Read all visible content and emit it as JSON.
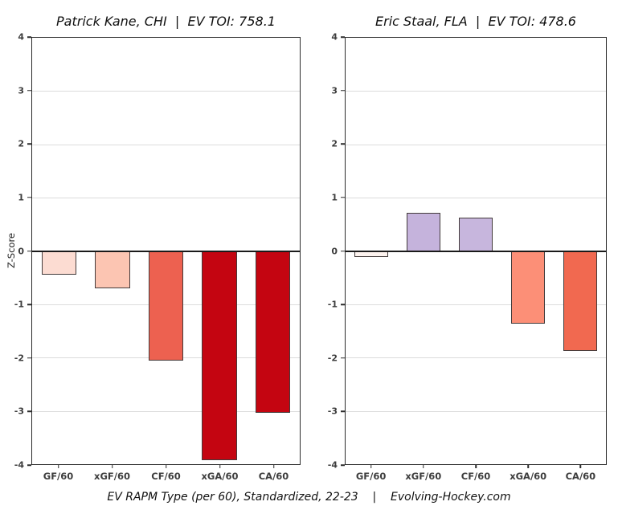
{
  "figure": {
    "ylabel": "Z-Score",
    "footer": "EV RAPM Type (per 60), Standardized, 22-23    |    Evolving-Hockey.com",
    "background": "#ffffff",
    "grid_color": "#dcdcdc",
    "axis_color": "#2b2b2b",
    "tick_label_color": "#3d3d3d"
  },
  "chart_data": [
    {
      "type": "bar",
      "title": "Patrick Kane, CHI  |  EV TOI: 758.1",
      "categories": [
        "GF/60",
        "xGF/60",
        "CF/60",
        "xGA/60",
        "CA/60"
      ],
      "values": [
        -0.45,
        -0.7,
        -2.05,
        -3.93,
        -3.03
      ],
      "bar_colors": [
        "#fcdcd2",
        "#fcc5b2",
        "#ed6150",
        "#c40511",
        "#c40511"
      ],
      "xlabel": "",
      "ylabel": "Z-Score",
      "ylim": [
        -4,
        4
      ],
      "yticks": [
        4,
        3,
        2,
        1,
        0,
        -1,
        -2,
        -3,
        -4
      ],
      "grid": true,
      "legend": false
    },
    {
      "type": "bar",
      "title": "Eric Staal, FLA  |  EV TOI: 478.6",
      "categories": [
        "GF/60",
        "xGF/60",
        "CF/60",
        "xGA/60",
        "CA/60"
      ],
      "values": [
        -0.11,
        0.72,
        0.62,
        -1.37,
        -1.87
      ],
      "bar_colors": [
        "#fdf3ef",
        "#c5b3dc",
        "#c7b6dd",
        "#fc8f77",
        "#f16950"
      ],
      "xlabel": "",
      "ylabel": "",
      "ylim": [
        -4,
        4
      ],
      "yticks": [
        4,
        3,
        2,
        1,
        0,
        -1,
        -2,
        -3,
        -4
      ],
      "grid": true,
      "legend": false
    }
  ]
}
